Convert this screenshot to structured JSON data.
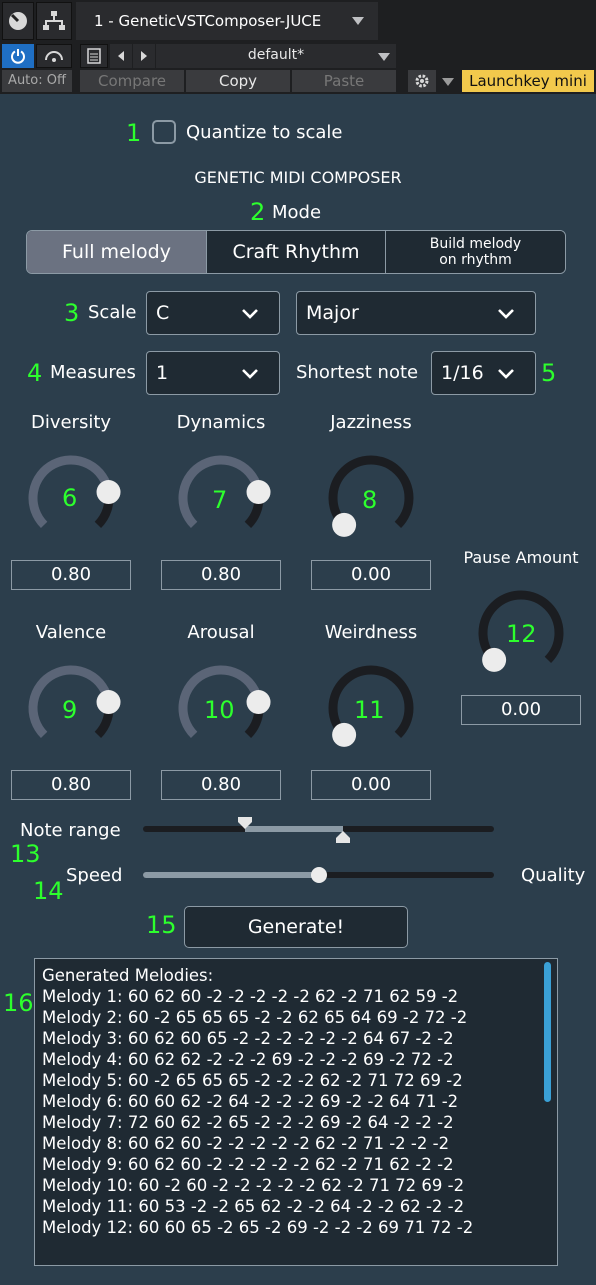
{
  "host": {
    "plugin_title": "1 - GeneticVSTComposer-JUCE",
    "preset": "default*",
    "auto_label": "Auto: Off",
    "compare_label": "Compare",
    "copy_label": "Copy",
    "paste_label": "Paste",
    "device_label": "Launchkey mini",
    "accent_color": "#1f6fc4",
    "device_color": "#f2c94c"
  },
  "markers": {
    "m1": "1",
    "m2": "2",
    "m3": "3",
    "m4": "4",
    "m5": "5",
    "m6": "6",
    "m7": "7",
    "m8": "8",
    "m9": "9",
    "m10": "10",
    "m11": "11",
    "m12": "12",
    "m13": "13",
    "m14": "14",
    "m15": "15",
    "m16": "16",
    "color": "#2dff2d"
  },
  "quantize_label": "Quantize to scale",
  "quantize_checked": false,
  "header_title": "GENETIC MIDI COMPOSER",
  "mode": {
    "label": "Mode",
    "options": [
      "Full melody",
      "Craft Rhythm",
      "Build melody on rhythm"
    ],
    "option3_line1": "Build melody",
    "option3_line2": "on rhythm",
    "selected": "Full melody"
  },
  "scale": {
    "label": "Scale",
    "root": "C",
    "type": "Major"
  },
  "measures": {
    "label": "Measures",
    "value": "1"
  },
  "shortest_note": {
    "label": "Shortest note",
    "value": "1/16"
  },
  "knobs": {
    "diversity": {
      "label": "Diversity",
      "value": "0.80",
      "level": 0.8
    },
    "dynamics": {
      "label": "Dynamics",
      "value": "0.80",
      "level": 0.8
    },
    "jazziness": {
      "label": "Jazziness",
      "value": "0.00",
      "level": 0.0
    },
    "valence": {
      "label": "Valence",
      "value": "0.80",
      "level": 0.8
    },
    "arousal": {
      "label": "Arousal",
      "value": "0.80",
      "level": 0.8
    },
    "weirdness": {
      "label": "Weirdness",
      "value": "0.00",
      "level": 0.0
    },
    "pause_amount": {
      "label": "Pause Amount",
      "value": "0.00",
      "level": 0.0
    }
  },
  "note_range": {
    "label": "Note range",
    "low": 0.29,
    "high": 0.57
  },
  "speed_quality": {
    "left_label": "Speed",
    "right_label": "Quality",
    "level": 0.5
  },
  "generate_label": "Generate!",
  "output": {
    "header": "Generated Melodies:",
    "lines": [
      "Melody 1: 60 62 60 -2 -2 -2 -2 -2 62 -2 71 62 59 -2",
      "Melody 2: 60 -2 65 65 65 -2 -2 62 65 64 69 -2 72 -2",
      "Melody 3: 60 62 60 65 -2 -2 -2 -2 -2 -2 64 67 -2 -2",
      "Melody 4: 60 62 62 -2 -2 -2 69 -2 -2 -2 69 -2 72 -2",
      "Melody 5: 60 -2 65 65 65 -2 -2 -2 62 -2 71 72 69 -2",
      "Melody 6: 60 60 62 -2 64 -2 -2 -2 69 -2 -2 64 71 -2",
      "Melody 7: 72 60 62 -2 65 -2 -2 -2 69 -2 64 -2 -2 -2",
      "Melody 8: 60 62 60 -2 -2 -2 -2 -2 62 -2 71 -2 -2 -2",
      "Melody 9: 60 62 60 -2 -2 -2 -2 -2 62 -2 71 62 -2 -2",
      "Melody 10: 60 -2 60 -2 -2 -2 -2 -2 62 -2 71 72 69 -2",
      "Melody 11: 60 53 -2 -2 65 62 -2 -2 64 -2 -2 62 -2 -2",
      "Melody 12: 60 60 65 -2 65 -2 69 -2 -2 -2 69 71 72 -2"
    ]
  }
}
